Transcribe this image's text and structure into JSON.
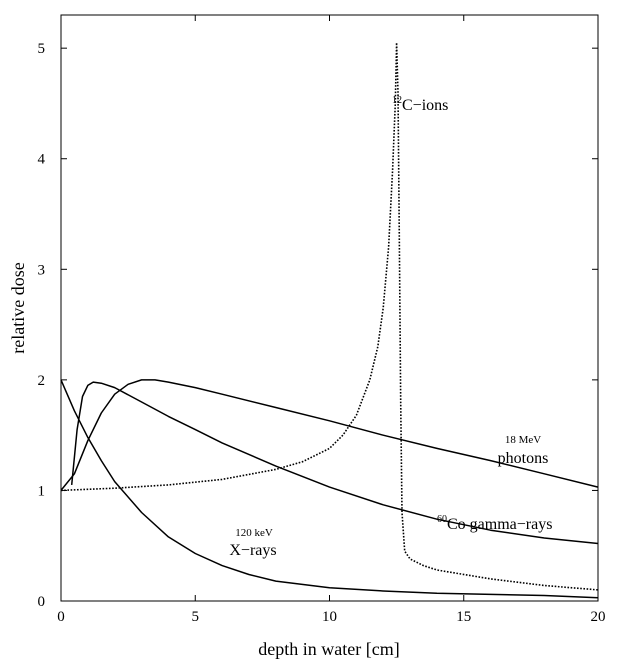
{
  "chart_data": {
    "type": "line",
    "title": "",
    "xlabel": "depth in water [cm]",
    "ylabel": "relative dose",
    "xlim": [
      0,
      20
    ],
    "ylim": [
      0,
      5.3
    ],
    "xticks": [
      0,
      5,
      10,
      15,
      20
    ],
    "yticks": [
      0,
      1,
      2,
      3,
      4,
      5
    ],
    "grid": false,
    "legend": "none",
    "series": [
      {
        "name": "12C-ions",
        "style": "dotted",
        "x": [
          0,
          2,
          4,
          6,
          8,
          9,
          10,
          10.5,
          11,
          11.5,
          11.8,
          12.0,
          12.2,
          12.35,
          12.45,
          12.5,
          12.55,
          12.6,
          12.65,
          12.7,
          12.8,
          13,
          13.5,
          14,
          16,
          18,
          20
        ],
        "y": [
          1.0,
          1.02,
          1.05,
          1.1,
          1.19,
          1.26,
          1.38,
          1.5,
          1.68,
          2.0,
          2.3,
          2.65,
          3.2,
          3.9,
          4.5,
          5.05,
          4.6,
          3.3,
          1.8,
          0.8,
          0.45,
          0.38,
          0.32,
          0.28,
          0.2,
          0.14,
          0.1
        ]
      },
      {
        "name": "18 MeV photons",
        "style": "solid",
        "x": [
          0,
          0.5,
          1,
          1.5,
          2,
          2.5,
          3,
          3.5,
          4,
          5,
          6,
          8,
          10,
          12,
          14,
          16,
          18,
          20
        ],
        "y": [
          1.0,
          1.15,
          1.45,
          1.7,
          1.87,
          1.96,
          2.0,
          2.0,
          1.98,
          1.93,
          1.87,
          1.75,
          1.63,
          1.5,
          1.38,
          1.27,
          1.15,
          1.03
        ]
      },
      {
        "name": "60Co gamma-rays",
        "style": "solid",
        "x": [
          0.4,
          0.6,
          0.8,
          1.0,
          1.2,
          1.5,
          2,
          3,
          4,
          5,
          6,
          8,
          10,
          12,
          14,
          16,
          18,
          20
        ],
        "y": [
          1.05,
          1.55,
          1.85,
          1.95,
          1.98,
          1.97,
          1.93,
          1.8,
          1.67,
          1.55,
          1.43,
          1.22,
          1.03,
          0.87,
          0.74,
          0.64,
          0.57,
          0.52
        ]
      },
      {
        "name": "120 keV X-rays",
        "style": "solid",
        "x": [
          0,
          0.5,
          1,
          1.5,
          2,
          3,
          4,
          5,
          6,
          7,
          8,
          10,
          12,
          14,
          16,
          18,
          20
        ],
        "y": [
          2.0,
          1.72,
          1.48,
          1.27,
          1.08,
          0.8,
          0.58,
          0.43,
          0.32,
          0.24,
          0.18,
          0.12,
          0.09,
          0.07,
          0.06,
          0.05,
          0.03
        ]
      }
    ],
    "annotations": {
      "carbon_sup": "12",
      "carbon_text": "C−ions",
      "photons_energy": "18 MeV",
      "photons_text": "photons",
      "cobalt_sup": "60",
      "cobalt_text": "Co gamma−rays",
      "xray_energy": "120 keV",
      "xray_text": "X−rays"
    }
  }
}
